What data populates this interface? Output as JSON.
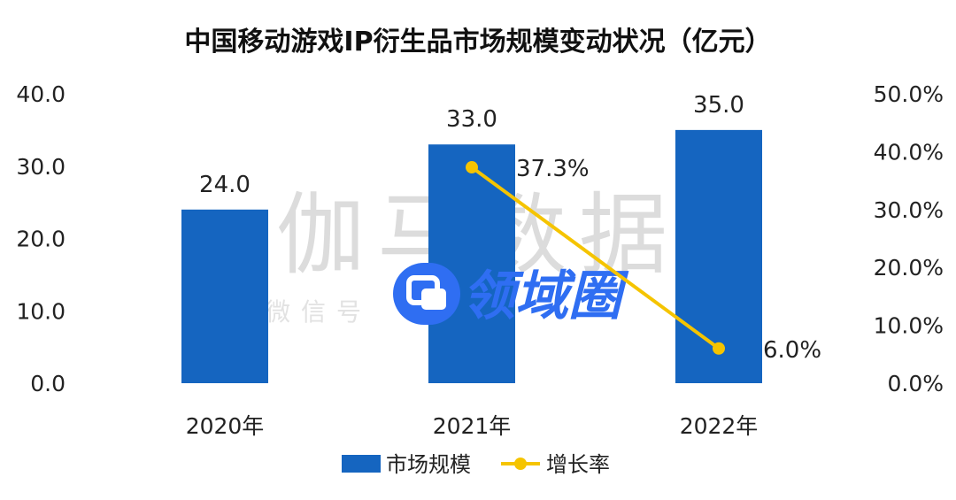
{
  "chart_data": {
    "type": "bar",
    "title": "中国移动游戏IP衍生品市场规模变动状况（亿元）",
    "categories": [
      "2020年",
      "2021年",
      "2022年"
    ],
    "series": [
      {
        "name": "市场规模",
        "type": "bar",
        "axis": "left",
        "values": [
          24.0,
          33.0,
          35.0
        ],
        "labels": [
          "24.0",
          "33.0",
          "35.0"
        ],
        "color": "#1565c0"
      },
      {
        "name": "增长率",
        "type": "line",
        "axis": "right",
        "values": [
          null,
          37.3,
          6.0
        ],
        "labels": [
          "",
          "37.3%",
          "6.0%"
        ],
        "color": "#f5c400"
      }
    ],
    "y_left": {
      "min": 0,
      "max": 40,
      "ticks": [
        "0.0",
        "10.0",
        "20.0",
        "30.0",
        "40.0"
      ]
    },
    "y_right": {
      "min": 0,
      "max": 50,
      "ticks": [
        "0.0%",
        "10.0%",
        "20.0%",
        "30.0%",
        "40.0%",
        "50.0%"
      ]
    },
    "grid": false,
    "legend": "bottom-center"
  },
  "watermark": {
    "main": "伽马数据",
    "sub": "微信号",
    "logo": "领域圈"
  }
}
